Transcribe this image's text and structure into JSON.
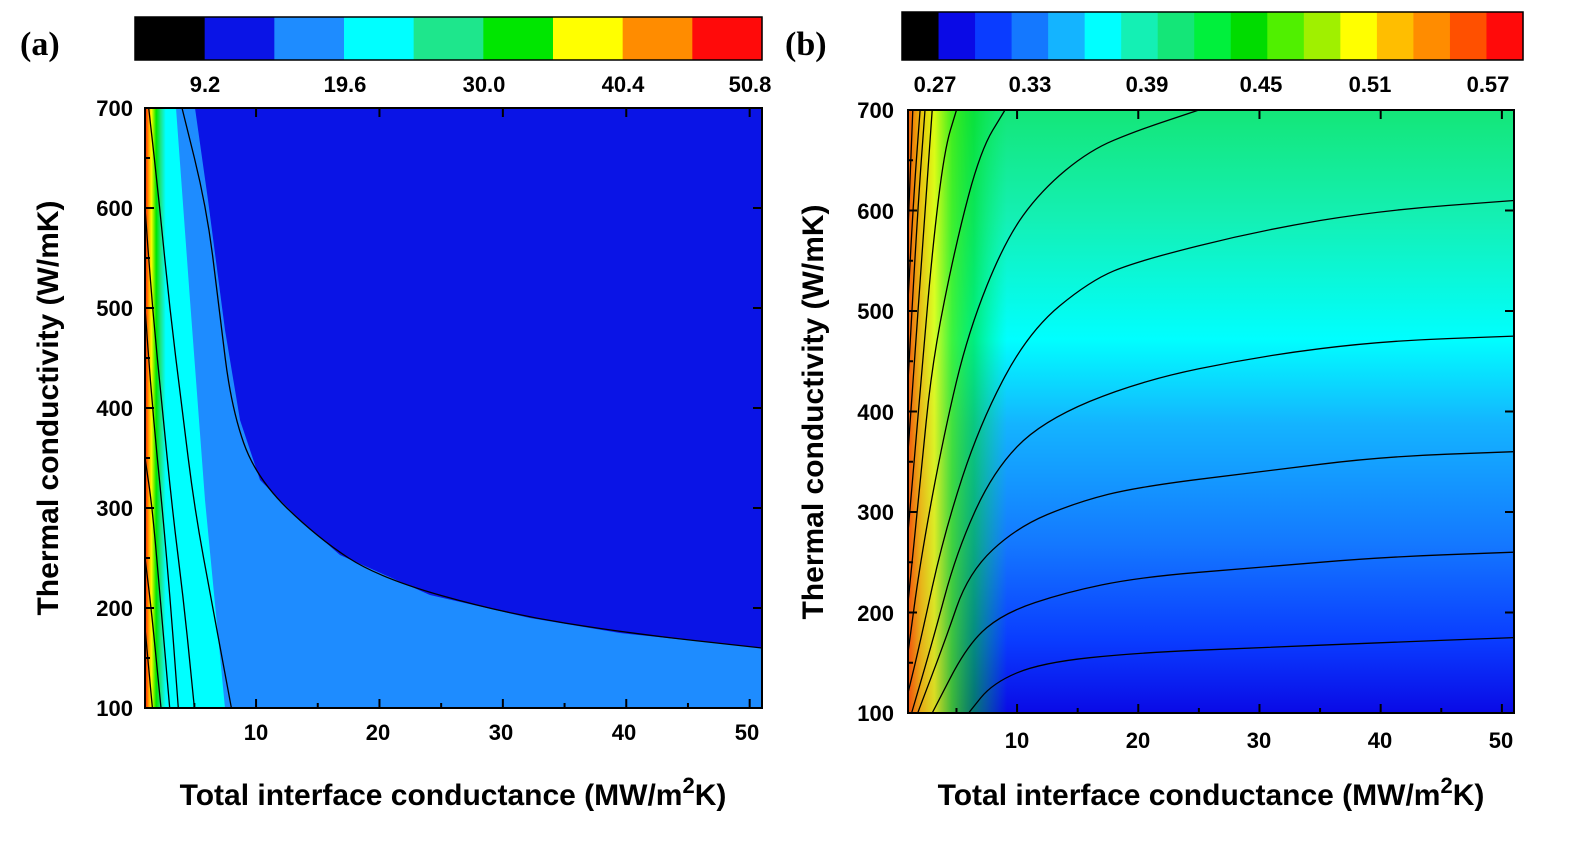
{
  "chart_data": [
    {
      "type": "contour",
      "panel_label": "(a)",
      "xlabel": "Total interface conductance (MW/m",
      "xlabel_sup": "2",
      "xlabel_end": "K)",
      "ylabel": "Thermal conductivity (W/mK)",
      "xlim": [
        1,
        51
      ],
      "ylim": [
        100,
        700
      ],
      "xticks": [
        10,
        20,
        30,
        40,
        50
      ],
      "yticks": [
        100,
        200,
        300,
        400,
        500,
        600,
        700
      ],
      "colorbar": {
        "colors": [
          "#000000",
          "#0a14e6",
          "#1e8cff",
          "#00ffff",
          "#1ee68c",
          "#00e600",
          "#ffff00",
          "#ff8c00",
          "#ff0a0a"
        ],
        "tick_labels": [
          "9.2",
          "19.6",
          "30.0",
          "40.4",
          "50.8"
        ]
      },
      "contour_lines": [
        {
          "level": "9.2",
          "points": [
            [
              4,
              700
            ],
            [
              6,
              600
            ],
            [
              7,
              500
            ],
            [
              8,
              400
            ],
            [
              10,
              330
            ],
            [
              15,
              270
            ],
            [
              20,
              230
            ],
            [
              30,
              195
            ],
            [
              40,
              175
            ],
            [
              51,
              160
            ]
          ]
        },
        {
          "level": "19.6",
          "points": [
            [
              1.3,
              700
            ],
            [
              2.2,
              600
            ],
            [
              3,
              500
            ],
            [
              4,
              400
            ],
            [
              5,
              300
            ],
            [
              6.5,
              200
            ],
            [
              8,
              100
            ]
          ]
        },
        {
          "level": "24.8",
          "points": [
            [
              1,
              600
            ],
            [
              1.6,
              500
            ],
            [
              2.4,
              400
            ],
            [
              3.2,
              300
            ],
            [
              4.2,
              200
            ],
            [
              5,
              100
            ]
          ]
        },
        {
          "level": "30.0",
          "points": [
            [
              1,
              500
            ],
            [
              1.6,
              400
            ],
            [
              2.4,
              300
            ],
            [
              3.1,
              200
            ],
            [
              3.7,
              100
            ]
          ]
        },
        {
          "level": "35.2",
          "points": [
            [
              1,
              350
            ],
            [
              1.6,
              300
            ],
            [
              2.3,
              200
            ],
            [
              3,
              100
            ]
          ]
        },
        {
          "level": "40.4",
          "points": [
            [
              1,
              250
            ],
            [
              1.5,
              200
            ],
            [
              2.3,
              100
            ]
          ]
        },
        {
          "level": "45.6",
          "points": [
            [
              1,
              180
            ],
            [
              1.6,
              100
            ]
          ]
        }
      ]
    },
    {
      "type": "contour",
      "panel_label": "(b)",
      "xlabel": "Total interface conductance (MW/m",
      "xlabel_sup": "2",
      "xlabel_end": "K)",
      "ylabel": "Thermal conductivity (W/mK)",
      "xlim": [
        1,
        51
      ],
      "ylim": [
        100,
        700
      ],
      "xticks": [
        10,
        20,
        30,
        40,
        50
      ],
      "yticks": [
        100,
        200,
        300,
        400,
        500,
        600,
        700
      ],
      "colorbar": {
        "colors": [
          "#000000",
          "#0a0ae6",
          "#0a3cff",
          "#1478ff",
          "#14b4ff",
          "#00ffff",
          "#14f0b4",
          "#14e678",
          "#00f03c",
          "#00dc00",
          "#50f000",
          "#a0f000",
          "#ffff00",
          "#ffbe00",
          "#ff8c00",
          "#ff5000",
          "#ff0a0a"
        ],
        "tick_labels": [
          "0.27",
          "0.33",
          "0.39",
          "0.45",
          "0.51",
          "0.57"
        ]
      },
      "contour_lines": [
        {
          "level": "0.30",
          "points": [
            [
              6,
              100
            ],
            [
              8,
              130
            ],
            [
              12,
              150
            ],
            [
              20,
              160
            ],
            [
              30,
              165
            ],
            [
              40,
              170
            ],
            [
              51,
              175
            ]
          ]
        },
        {
          "level": "0.32",
          "points": [
            [
              3,
              100
            ],
            [
              6,
              170
            ],
            [
              9,
              200
            ],
            [
              14,
              220
            ],
            [
              20,
              235
            ],
            [
              30,
              245
            ],
            [
              40,
              255
            ],
            [
              51,
              260
            ]
          ]
        },
        {
          "level": "0.34",
          "points": [
            [
              1.8,
              100
            ],
            [
              4,
              170
            ],
            [
              6,
              240
            ],
            [
              10,
              285
            ],
            [
              15,
              310
            ],
            [
              20,
              325
            ],
            [
              30,
              340
            ],
            [
              40,
              355
            ],
            [
              51,
              360
            ]
          ]
        },
        {
          "level": "0.36",
          "points": [
            [
              1.3,
              100
            ],
            [
              3,
              170
            ],
            [
              5,
              260
            ],
            [
              8,
              340
            ],
            [
              12,
              390
            ],
            [
              20,
              430
            ],
            [
              30,
              455
            ],
            [
              40,
              470
            ],
            [
              51,
              475
            ]
          ]
        },
        {
          "level": "0.38",
          "points": [
            [
              1,
              120
            ],
            [
              2,
              170
            ],
            [
              4,
              280
            ],
            [
              7,
              390
            ],
            [
              11,
              480
            ],
            [
              16,
              530
            ],
            [
              20,
              550
            ],
            [
              30,
              580
            ],
            [
              40,
              600
            ],
            [
              51,
              610
            ]
          ]
        },
        {
          "level": "0.40",
          "points": [
            [
              1,
              160
            ],
            [
              2,
              250
            ],
            [
              4,
              380
            ],
            [
              6,
              480
            ],
            [
              9,
              570
            ],
            [
              12,
              620
            ],
            [
              16,
              660
            ],
            [
              20,
              680
            ],
            [
              25,
              700
            ]
          ]
        },
        {
          "level": "0.42",
          "points": [
            [
              1,
              210
            ],
            [
              2,
              330
            ],
            [
              3,
              450
            ],
            [
              5,
              570
            ],
            [
              7,
              660
            ],
            [
              9,
              700
            ]
          ]
        },
        {
          "level": "0.44",
          "points": [
            [
              1,
              280
            ],
            [
              2,
              420
            ],
            [
              3,
              560
            ],
            [
              4,
              660
            ],
            [
              5,
              700
            ]
          ]
        },
        {
          "level": "0.46",
          "points": [
            [
              1,
              360
            ],
            [
              2,
              530
            ],
            [
              3,
              700
            ]
          ]
        },
        {
          "level": "0.48",
          "points": [
            [
              1,
              430
            ],
            [
              1.8,
              600
            ],
            [
              2.4,
              700
            ]
          ]
        },
        {
          "level": "0.50",
          "points": [
            [
              1,
              510
            ],
            [
              1.5,
              620
            ],
            [
              2,
              700
            ]
          ]
        },
        {
          "level": "0.52",
          "points": [
            [
              1,
              580
            ],
            [
              1.4,
              700
            ]
          ]
        }
      ]
    }
  ]
}
